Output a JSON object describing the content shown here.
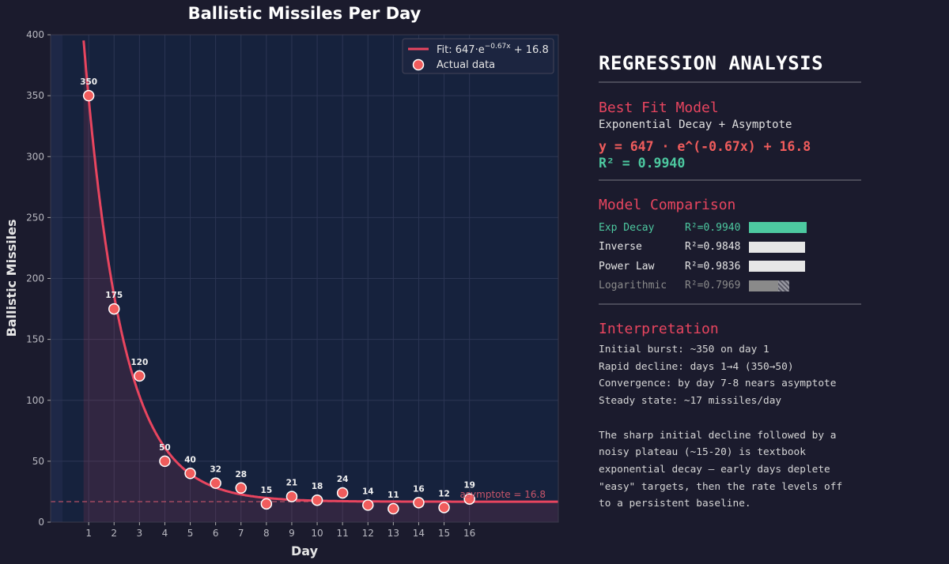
{
  "chart_data": {
    "type": "scatter",
    "title": "Ballistic Missiles Per Day",
    "xlabel": "Day",
    "ylabel": "Ballistic Missiles",
    "xlim": [
      -0.5,
      19.5
    ],
    "ylim": [
      0,
      400
    ],
    "x_ticks": [
      1,
      2,
      3,
      4,
      5,
      6,
      7,
      8,
      9,
      10,
      11,
      12,
      13,
      14,
      15,
      16
    ],
    "y_ticks": [
      0,
      50,
      100,
      150,
      200,
      250,
      300,
      350,
      400
    ],
    "x": [
      1,
      2,
      3,
      4,
      5,
      6,
      7,
      8,
      9,
      10,
      11,
      12,
      13,
      14,
      15,
      16
    ],
    "values": [
      350,
      175,
      120,
      50,
      40,
      32,
      28,
      15,
      21,
      18,
      24,
      14,
      11,
      16,
      12,
      19
    ],
    "point_labels": [
      "350",
      "175",
      "120",
      "50",
      "40",
      "32",
      "28",
      "15",
      "21",
      "18",
      "24",
      "14",
      "11",
      "16",
      "12",
      "19"
    ],
    "fit": {
      "a": 647,
      "b": 0.67,
      "c": 16.8
    },
    "asymptote": 16.8,
    "asymptote_label": "asymptote = 16.8",
    "legend": {
      "position": "top-right",
      "fit_prefix": "Fit: 647·e",
      "fit_exp": "−0.67x",
      "fit_suffix": " + 16.8",
      "data_label": "Actual data"
    },
    "grid": true
  },
  "panel": {
    "title": "REGRESSION ANALYSIS",
    "best_fit_heading": "Best Fit Model",
    "best_fit_name": "Exponential Decay + Asymptote",
    "equation": "y = 647 · e^(-0.67x) + 16.8",
    "r2": "R² = 0.9940",
    "comparison_heading": "Model Comparison",
    "models": [
      {
        "name": "Exp Decay",
        "r2": "R²=0.9940",
        "score": 0.994,
        "color": "#4dc9a0",
        "bar": "#4dc9a0"
      },
      {
        "name": "Inverse",
        "r2": "R²=0.9848",
        "score": 0.9848,
        "color": "#e6e6e6",
        "bar": "#e6e6e6"
      },
      {
        "name": "Power Law",
        "r2": "R²=0.9836",
        "score": 0.9836,
        "color": "#e6e6e6",
        "bar": "#e6e6e6"
      },
      {
        "name": "Logarithmic",
        "r2": "R²=0.7969",
        "score": 0.7969,
        "color": "#8a8a8a",
        "bar": "#8a8a8a"
      }
    ],
    "interpretation_heading": "Interpretation",
    "interpretation": "Initial burst: ~350 on day 1\nRapid decline: days 1→4 (350→50)\nConvergence: by day 7-8 nears asymptote\nSteady state: ~17 missiles/day\n\nThe sharp initial decline followed by a\nnoisy plateau (~15-20) is textbook\nexponential decay — early days deplete\n\"easy\" targets, then the rate levels off\nto a persistent baseline."
  },
  "colors": {
    "background": "#1b1b2d",
    "plot_bg": "#16223d",
    "accent": "#e8455f",
    "point": "#f05c5c",
    "fit_line": "#e8455f",
    "good": "#4dc9a0"
  }
}
